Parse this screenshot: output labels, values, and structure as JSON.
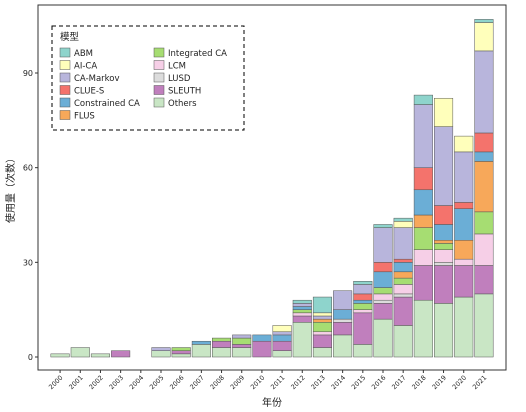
{
  "chart_data": {
    "type": "bar",
    "stacked": true,
    "xlabel": "年份",
    "ylabel": "使用量（次数）",
    "ylim": [
      0,
      108
    ],
    "yticks": [
      0,
      30,
      60,
      90
    ],
    "grid": false,
    "legend_title": "模型",
    "legend_position": "top-left (inside)",
    "categories": [
      "2000",
      "2001",
      "2002",
      "2003",
      "2004",
      "2005",
      "2006",
      "2007",
      "2008",
      "2009",
      "2010",
      "2011",
      "2012",
      "2013",
      "2014",
      "2015",
      "2016",
      "2017",
      "2018",
      "2019",
      "2020",
      "2021"
    ],
    "series": [
      {
        "name": "Others",
        "color": "#c9e6c5",
        "values": [
          1,
          3,
          1,
          0,
          0,
          2,
          1,
          4,
          3,
          3,
          0,
          2,
          11,
          3,
          7,
          4,
          12,
          10,
          18,
          17,
          19,
          20
        ]
      },
      {
        "name": "SLEUTH",
        "color": "#c07fbd",
        "values": [
          0,
          0,
          0,
          2,
          0,
          0,
          1,
          0,
          2,
          1,
          5,
          3,
          2,
          4,
          4,
          10,
          5,
          9,
          11,
          12,
          10,
          9
        ]
      },
      {
        "name": "LUSD",
        "color": "#dcdcdc",
        "values": [
          0,
          0,
          0,
          0,
          0,
          0,
          0,
          0,
          0,
          0,
          0,
          0,
          0,
          0,
          1,
          0,
          1,
          1,
          0,
          1,
          0,
          0
        ]
      },
      {
        "name": "LCM",
        "color": "#f6cfe7",
        "values": [
          0,
          0,
          0,
          0,
          0,
          0,
          0,
          0,
          0,
          0,
          0,
          0,
          1,
          1,
          0,
          1,
          2,
          3,
          5,
          4,
          2,
          10
        ]
      },
      {
        "name": "Integrated CA",
        "color": "#a6dd72",
        "values": [
          0,
          0,
          0,
          0,
          0,
          0,
          1,
          0,
          1,
          2,
          0,
          0,
          1,
          3,
          0,
          2,
          2,
          2,
          7,
          2,
          0,
          7
        ]
      },
      {
        "name": "FLUS",
        "color": "#f7a85a",
        "values": [
          0,
          0,
          0,
          0,
          0,
          0,
          0,
          0,
          0,
          0,
          0,
          0,
          0,
          1,
          0,
          0,
          0,
          2,
          4,
          1,
          6,
          16
        ]
      },
      {
        "name": "Constrained CA",
        "color": "#6baed6",
        "values": [
          0,
          0,
          0,
          0,
          0,
          0,
          0,
          1,
          0,
          0,
          2,
          2,
          1,
          0,
          3,
          1,
          5,
          3,
          8,
          5,
          10,
          3
        ]
      },
      {
        "name": "CLUE-S",
        "color": "#f4736c",
        "values": [
          0,
          0,
          0,
          0,
          0,
          0,
          0,
          0,
          0,
          0,
          0,
          0,
          0,
          0,
          0,
          2,
          3,
          1,
          7,
          6,
          2,
          6
        ]
      },
      {
        "name": "CA-Markov",
        "color": "#b8b5dc",
        "values": [
          0,
          0,
          0,
          0,
          0,
          1,
          0,
          0,
          0,
          1,
          0,
          1,
          1,
          1,
          6,
          3,
          11,
          10,
          20,
          25,
          16,
          26
        ]
      },
      {
        "name": "AI-CA",
        "color": "#ffffbb",
        "values": [
          0,
          0,
          0,
          0,
          0,
          0,
          0,
          0,
          0,
          0,
          0,
          2,
          0,
          1,
          0,
          0,
          0,
          2,
          0,
          9,
          5,
          9
        ]
      },
      {
        "name": "ABM",
        "color": "#8ed4cc",
        "values": [
          0,
          0,
          0,
          0,
          0,
          0,
          0,
          0,
          0,
          0,
          0,
          0,
          1,
          5,
          0,
          1,
          1,
          1,
          3,
          0,
          0,
          1
        ]
      }
    ],
    "legend_order": [
      "ABM",
      "AI-CA",
      "CA-Markov",
      "CLUE-S",
      "Constrained CA",
      "FLUS",
      "Integrated CA",
      "LCM",
      "LUSD",
      "SLEUTH",
      "Others"
    ]
  }
}
